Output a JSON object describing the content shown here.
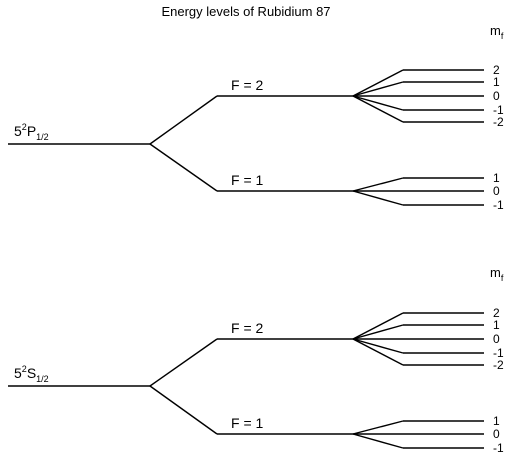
{
  "title": "Energy levels of Rubidium 87",
  "colors": {
    "line": "#000000",
    "background": "#ffffff",
    "text": "#000000"
  },
  "mf_header": {
    "main": "m",
    "sub": "f"
  },
  "blocks": [
    {
      "id": "p-state",
      "state": {
        "prefix": "5",
        "sup": "2",
        "letter": "P",
        "sub": "1/2"
      },
      "levels": [
        {
          "label": "F = 2",
          "mf": [
            "2",
            "1",
            "0",
            "-1",
            "-2"
          ]
        },
        {
          "label": "F = 1",
          "mf": [
            "1",
            "0",
            "-1"
          ]
        }
      ]
    },
    {
      "id": "s-state",
      "state": {
        "prefix": "5",
        "sup": "2",
        "letter": "S",
        "sub": "1/2"
      },
      "levels": [
        {
          "label": "F = 2",
          "mf": [
            "2",
            "1",
            "0",
            "-1",
            "-2"
          ]
        },
        {
          "label": "F = 1",
          "mf": [
            "1",
            "0",
            "-1"
          ]
        }
      ]
    }
  ]
}
